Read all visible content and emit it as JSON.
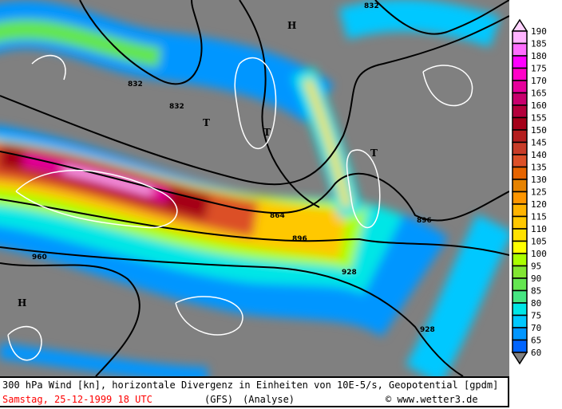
{
  "map": {
    "contour_labels": [
      "832",
      "832",
      "832",
      "864",
      "896",
      "896",
      "928",
      "928",
      "960"
    ],
    "pressure_centers": [
      {
        "type": "H"
      },
      {
        "type": "H"
      },
      {
        "type": "T"
      },
      {
        "type": "T"
      },
      {
        "type": "T"
      }
    ],
    "colors": {
      "background": "#808080",
      "land_border": "#000000",
      "divergence": "#ffffff",
      "geopotential": "#000000"
    }
  },
  "legend": {
    "labels": [
      190,
      185,
      180,
      175,
      170,
      165,
      160,
      155,
      150,
      145,
      140,
      135,
      130,
      125,
      120,
      115,
      110,
      105,
      100,
      95,
      90,
      85,
      80,
      75,
      70,
      65,
      60
    ],
    "colors": [
      "#ffb4ff",
      "#ff6eff",
      "#ff00ff",
      "#ff00c8",
      "#e6009b",
      "#c8006e",
      "#b4003c",
      "#a50019",
      "#b41e1e",
      "#c83c28",
      "#dc5028",
      "#e66400",
      "#e68200",
      "#ff9600",
      "#ffb400",
      "#ffc800",
      "#ffe100",
      "#ffff00",
      "#aaff00",
      "#82e632",
      "#64e650",
      "#46e682",
      "#00e6e6",
      "#00c8ff",
      "#0096ff",
      "#0064ff"
    ],
    "top_arrow_color": "#ffd2ff",
    "bottom_arrow_color": "#808080"
  },
  "caption": {
    "title": "300 hPa Wind [kn], horizontale Divergenz in Einheiten von 10E-5/s, Geopotential [gpdm]",
    "date": "Samstag, 25-12-1999  18 UTC",
    "model": "(GFS)",
    "analysis": "(Analyse)",
    "copyright": "© www.wetter3.de"
  }
}
